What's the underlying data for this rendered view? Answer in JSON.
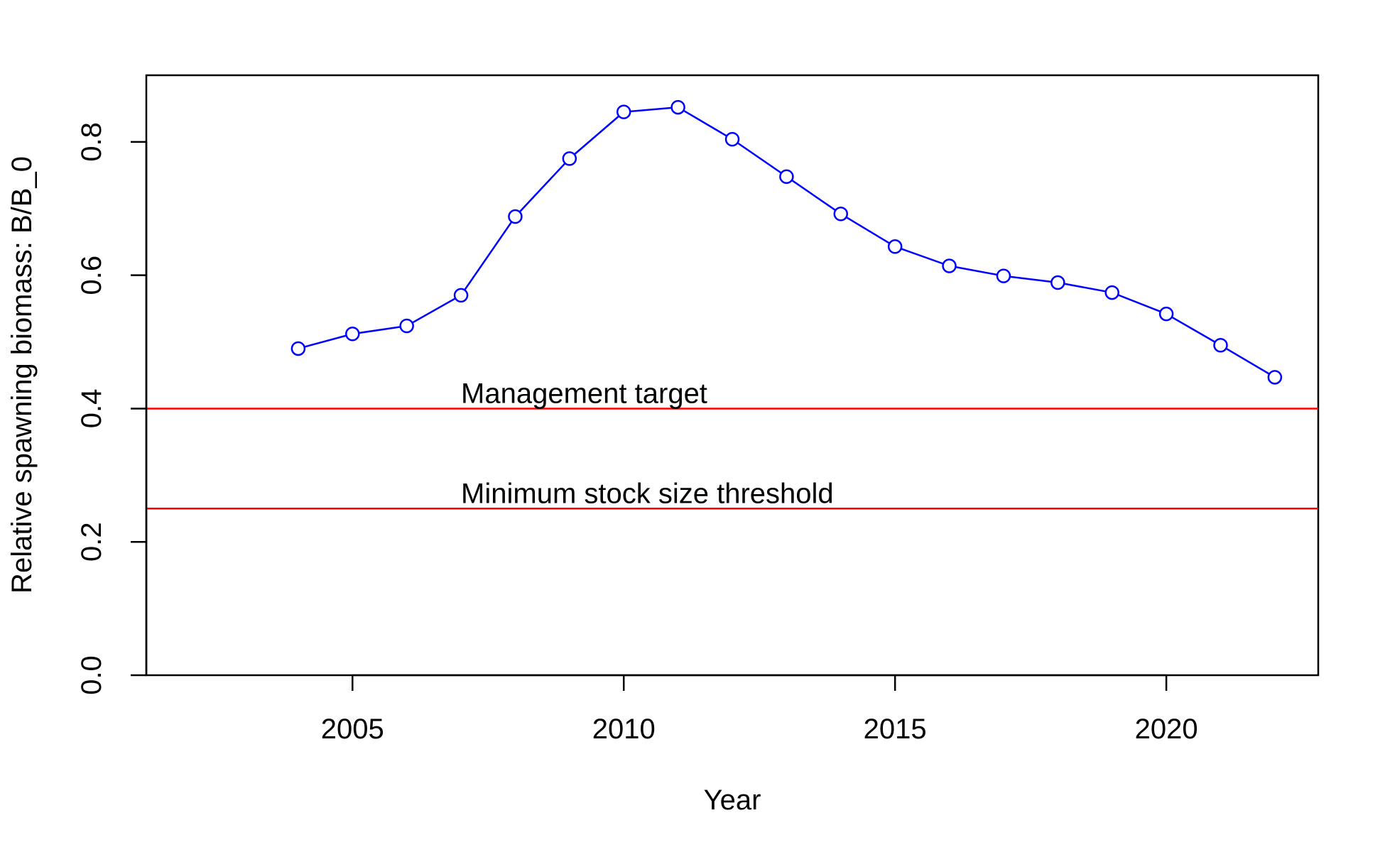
{
  "chart_data": {
    "type": "line",
    "title": "",
    "xlabel": "Year",
    "ylabel": "Relative spawning biomass: B/B_0",
    "xlim": [
      2001.2,
      2022.8
    ],
    "ylim": [
      0,
      0.9
    ],
    "xticks": [
      2005,
      2010,
      2015,
      2020
    ],
    "xtick_labels": [
      "2005",
      "2010",
      "2015",
      "2020"
    ],
    "yticks": [
      0.0,
      0.2,
      0.4,
      0.6,
      0.8
    ],
    "ytick_labels": [
      "0.0",
      "0.2",
      "0.4",
      "0.6",
      "0.8"
    ],
    "grid": false,
    "series": [
      {
        "name": "Relative spawning biomass",
        "color": "#0000ff",
        "marker": "open-circle",
        "x": [
          2004,
          2005,
          2006,
          2007,
          2008,
          2009,
          2010,
          2011,
          2012,
          2013,
          2014,
          2015,
          2016,
          2017,
          2018,
          2019,
          2020,
          2021,
          2022
        ],
        "values": [
          0.49,
          0.512,
          0.524,
          0.57,
          0.688,
          0.775,
          0.845,
          0.852,
          0.804,
          0.748,
          0.692,
          0.643,
          0.614,
          0.599,
          0.589,
          0.574,
          0.542,
          0.495,
          0.447
        ]
      }
    ],
    "reference_lines": [
      {
        "name": "Management target",
        "value": 0.4,
        "color": "#ff0000",
        "label": "Management target",
        "label_x": 2007
      },
      {
        "name": "Minimum stock size threshold",
        "value": 0.25,
        "color": "#ff0000",
        "label": "Minimum stock size threshold",
        "label_x": 2007
      }
    ]
  }
}
